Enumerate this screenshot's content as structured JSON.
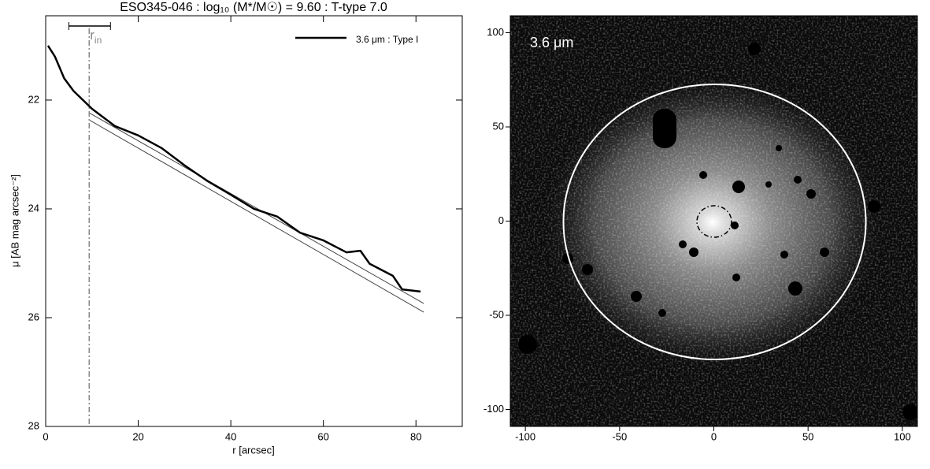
{
  "chart_data": [
    {
      "type": "line",
      "title": "ESO345-046 : log₁₀ (M*/M☉) = 9.60 : T-type 7.0",
      "x_label": "r [arcsec]",
      "y_label": "μ [AB mag arcsec⁻²]",
      "xlim": [
        0,
        90
      ],
      "xticks": [
        0,
        20,
        40,
        60,
        80
      ],
      "ylim": [
        28,
        20.45
      ],
      "yticks": [
        22,
        24,
        26,
        28
      ],
      "x": [
        0.5,
        2,
        4,
        6,
        10,
        15,
        20,
        25,
        30,
        35,
        40,
        45,
        50,
        55,
        60,
        65,
        68,
        70,
        75,
        77,
        81
      ],
      "series": [
        {
          "name": "3.6 μm : Type I",
          "color": "#000000",
          "values": [
            21.0,
            21.2,
            21.6,
            21.83,
            22.16,
            22.48,
            22.65,
            22.88,
            23.2,
            23.49,
            23.74,
            24.0,
            24.14,
            24.44,
            24.58,
            24.8,
            24.77,
            25.01,
            25.23,
            25.48,
            25.52
          ]
        }
      ],
      "fit_lines": [
        {
          "x": [
            9.3,
            81.7
          ],
          "values": [
            22.23,
            25.74
          ]
        },
        {
          "x": [
            9.3,
            81.7
          ],
          "values": [
            22.36,
            25.9
          ]
        }
      ],
      "r_in": 9.4,
      "r_in_range": [
        5,
        14
      ],
      "annotation": "r",
      "annotation_sub": "in",
      "legend": "upper right"
    },
    {
      "type": "image",
      "label": "3.6 μm",
      "xlim": [
        -108,
        108
      ],
      "xticks": [
        -100,
        -50,
        0,
        50,
        100
      ],
      "ylim": [
        -109,
        109
      ],
      "yticks": [
        -100,
        -50,
        0,
        50,
        100
      ]
    }
  ]
}
